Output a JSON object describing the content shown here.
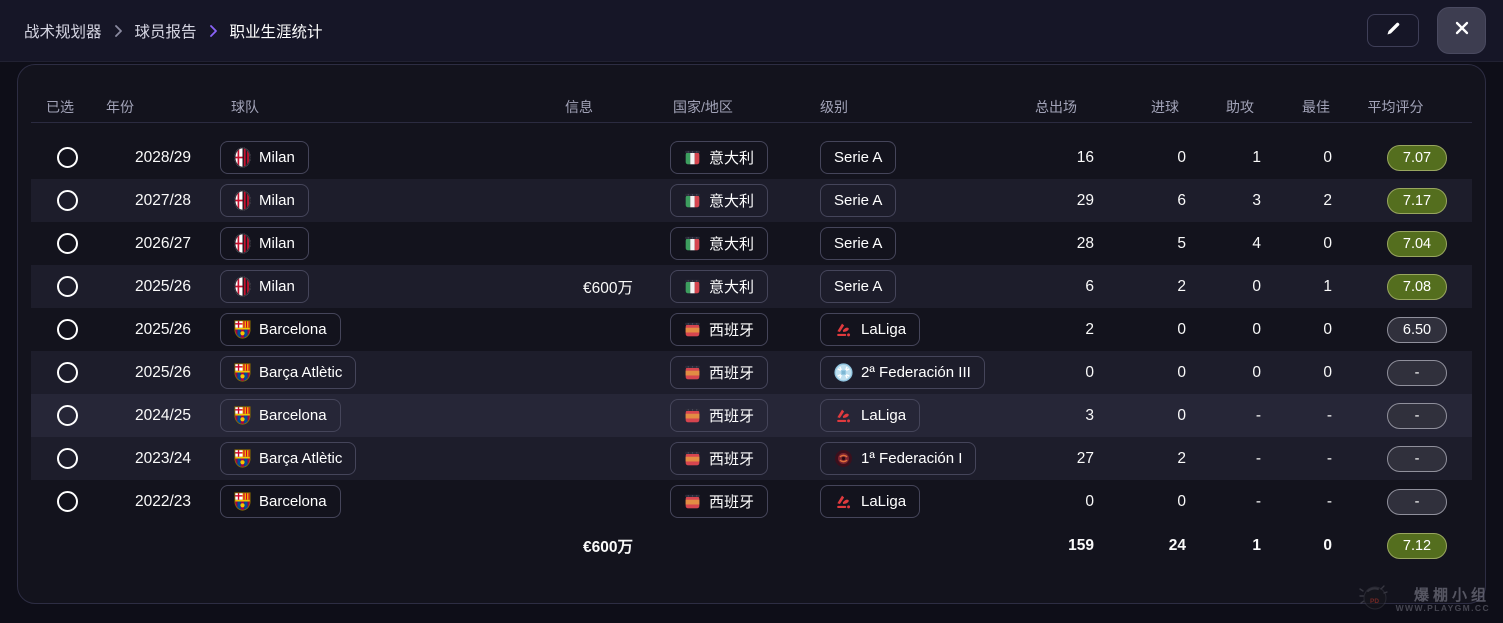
{
  "breadcrumb": {
    "items": [
      "战术规划器",
      "球员报告",
      "职业生涯统计"
    ]
  },
  "toolbar": {
    "edit_icon": "pencil-icon",
    "close_icon": "close-icon"
  },
  "table": {
    "columns": {
      "selected": "已选",
      "year": "年份",
      "team": "球队",
      "info": "信息",
      "country": "国家/地区",
      "level": "级别",
      "apps": "总出场",
      "goals": "进球",
      "assists": "助攻",
      "potm": "最佳",
      "rating": "平均评分"
    },
    "rows": [
      {
        "year": "2028/29",
        "team": {
          "name": "Milan",
          "icon": "milan-crest"
        },
        "info": "",
        "country": {
          "name": "意大利",
          "icon": "italy-flag"
        },
        "level": {
          "name": "Serie A",
          "icon": null
        },
        "apps": "16",
        "goals": "0",
        "assists": "1",
        "potm": "0",
        "rating": "7.07",
        "rating_style": "green",
        "highlight": false
      },
      {
        "year": "2027/28",
        "team": {
          "name": "Milan",
          "icon": "milan-crest"
        },
        "info": "",
        "country": {
          "name": "意大利",
          "icon": "italy-flag"
        },
        "level": {
          "name": "Serie A",
          "icon": null
        },
        "apps": "29",
        "goals": "6",
        "assists": "3",
        "potm": "2",
        "rating": "7.17",
        "rating_style": "green",
        "highlight": false
      },
      {
        "year": "2026/27",
        "team": {
          "name": "Milan",
          "icon": "milan-crest"
        },
        "info": "",
        "country": {
          "name": "意大利",
          "icon": "italy-flag"
        },
        "level": {
          "name": "Serie A",
          "icon": null
        },
        "apps": "28",
        "goals": "5",
        "assists": "4",
        "potm": "0",
        "rating": "7.04",
        "rating_style": "green",
        "highlight": false
      },
      {
        "year": "2025/26",
        "team": {
          "name": "Milan",
          "icon": "milan-crest"
        },
        "info": "€600万",
        "country": {
          "name": "意大利",
          "icon": "italy-flag"
        },
        "level": {
          "name": "Serie A",
          "icon": null
        },
        "apps": "6",
        "goals": "2",
        "assists": "0",
        "potm": "1",
        "rating": "7.08",
        "rating_style": "green",
        "highlight": false
      },
      {
        "year": "2025/26",
        "team": {
          "name": "Barcelona",
          "icon": "barcelona-crest"
        },
        "info": "",
        "country": {
          "name": "西班牙",
          "icon": "spain-flag"
        },
        "level": {
          "name": "LaLiga",
          "icon": "laliga"
        },
        "apps": "2",
        "goals": "0",
        "assists": "0",
        "potm": "0",
        "rating": "6.50",
        "rating_style": "gray",
        "highlight": false
      },
      {
        "year": "2025/26",
        "team": {
          "name": "Barça Atlètic",
          "icon": "barcelona-crest"
        },
        "info": "",
        "country": {
          "name": "西班牙",
          "icon": "spain-flag"
        },
        "level": {
          "name": "2ª Federación III",
          "icon": "federacion-blue"
        },
        "apps": "0",
        "goals": "0",
        "assists": "0",
        "potm": "0",
        "rating": "-",
        "rating_style": "gray",
        "highlight": false
      },
      {
        "year": "2024/25",
        "team": {
          "name": "Barcelona",
          "icon": "barcelona-crest"
        },
        "info": "",
        "country": {
          "name": "西班牙",
          "icon": "spain-flag"
        },
        "level": {
          "name": "LaLiga",
          "icon": "laliga"
        },
        "apps": "3",
        "goals": "0",
        "assists": "-",
        "potm": "-",
        "rating": "-",
        "rating_style": "gray",
        "highlight": true
      },
      {
        "year": "2023/24",
        "team": {
          "name": "Barça Atlètic",
          "icon": "barcelona-crest"
        },
        "info": "",
        "country": {
          "name": "西班牙",
          "icon": "spain-flag"
        },
        "level": {
          "name": "1ª Federación I",
          "icon": "federacion-red"
        },
        "apps": "27",
        "goals": "2",
        "assists": "-",
        "potm": "-",
        "rating": "-",
        "rating_style": "gray",
        "highlight": false
      },
      {
        "year": "2022/23",
        "team": {
          "name": "Barcelona",
          "icon": "barcelona-crest"
        },
        "info": "",
        "country": {
          "name": "西班牙",
          "icon": "spain-flag"
        },
        "level": {
          "name": "LaLiga",
          "icon": "laliga"
        },
        "apps": "0",
        "goals": "0",
        "assists": "-",
        "potm": "-",
        "rating": "-",
        "rating_style": "gray",
        "highlight": false
      }
    ],
    "totals": {
      "info": "€600万",
      "apps": "159",
      "goals": "24",
      "assists": "1",
      "potm": "0",
      "rating": "7.12",
      "rating_style": "green"
    }
  },
  "colors": {
    "accent_purple": "#8a63f8",
    "rating_green_bg": "#546e1e",
    "rating_green_border": "#98a65f",
    "rating_gray_bg": "#30303c",
    "rating_gray_border": "#90909c",
    "row_alt": "#1d1d2b",
    "row_highlight": "#262637"
  },
  "watermark": {
    "logo": "playgm-logo",
    "line1": "爆棚小组",
    "line2": "WWW.PLAYGM.CC"
  }
}
